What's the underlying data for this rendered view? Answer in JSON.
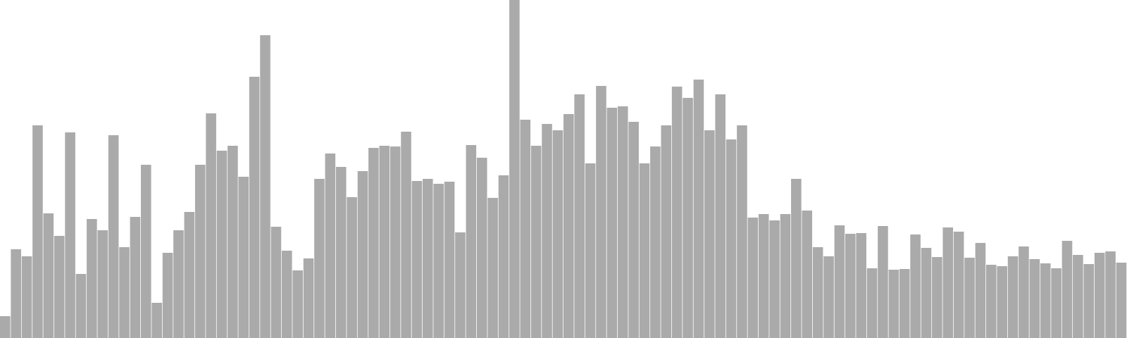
{
  "chart_data": {
    "type": "bar",
    "title": "",
    "xlabel": "",
    "ylabel": "",
    "ylim": [
      0,
      480
    ],
    "grid": false,
    "legend": "none",
    "bar_color": "#aaaaaa",
    "background": "#ffffff",
    "values": [
      31,
      126,
      116,
      302,
      177,
      145,
      292,
      91,
      169,
      153,
      288,
      129,
      172,
      246,
      50,
      121,
      153,
      179,
      246,
      319,
      266,
      273,
      229,
      371,
      430,
      158,
      124,
      96,
      113,
      226,
      262,
      243,
      200,
      237,
      270,
      273,
      272,
      293,
      223,
      226,
      219,
      222,
      150,
      274,
      256,
      199,
      231,
      480,
      310,
      273,
      304,
      295,
      318,
      346,
      248,
      358,
      327,
      329,
      307,
      248,
      272,
      302,
      357,
      341,
      367,
      295,
      346,
      282,
      302,
      171,
      176,
      167,
      176,
      226,
      181,
      129,
      116,
      160,
      148,
      149,
      99,
      159,
      97,
      98,
      147,
      128,
      115,
      157,
      151,
      114,
      135,
      104,
      102,
      116,
      130,
      112,
      106,
      99,
      138,
      118,
      105,
      121,
      123,
      107
    ]
  }
}
